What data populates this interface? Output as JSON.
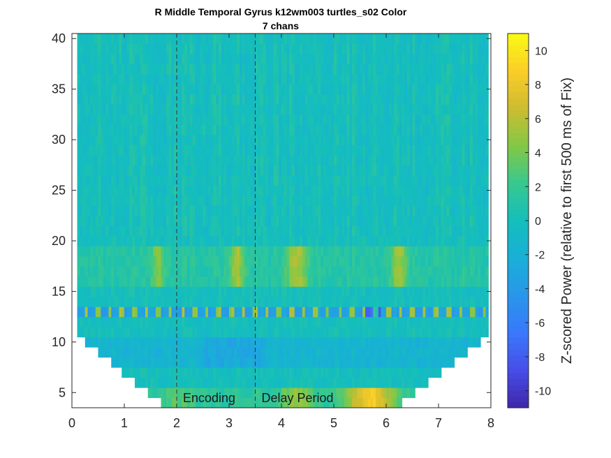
{
  "chart_data": {
    "type": "heatmap",
    "title_line1": "R Middle Temporal Gyrus k12wm003 turtles_s02 Color",
    "title_line2": "7 chans",
    "xlim": [
      0,
      8
    ],
    "ylim": [
      3.5,
      40.5
    ],
    "x_ticks": [
      0,
      1,
      2,
      3,
      4,
      5,
      6,
      7,
      8
    ],
    "y_ticks": [
      5,
      10,
      15,
      20,
      25,
      30,
      35,
      40
    ],
    "colorbar": {
      "label": "Z-scored Power (relative to first 500 ms of Fix)",
      "clim": [
        -11,
        11
      ],
      "ticks": [
        -10,
        -8,
        -6,
        -4,
        -2,
        0,
        2,
        4,
        6,
        8,
        10
      ],
      "colormap": "parula"
    },
    "event_markers": [
      {
        "x": 2.0,
        "label": "Encoding"
      },
      {
        "x": 3.5,
        "label": "Delay Period"
      }
    ],
    "grid": false
  }
}
